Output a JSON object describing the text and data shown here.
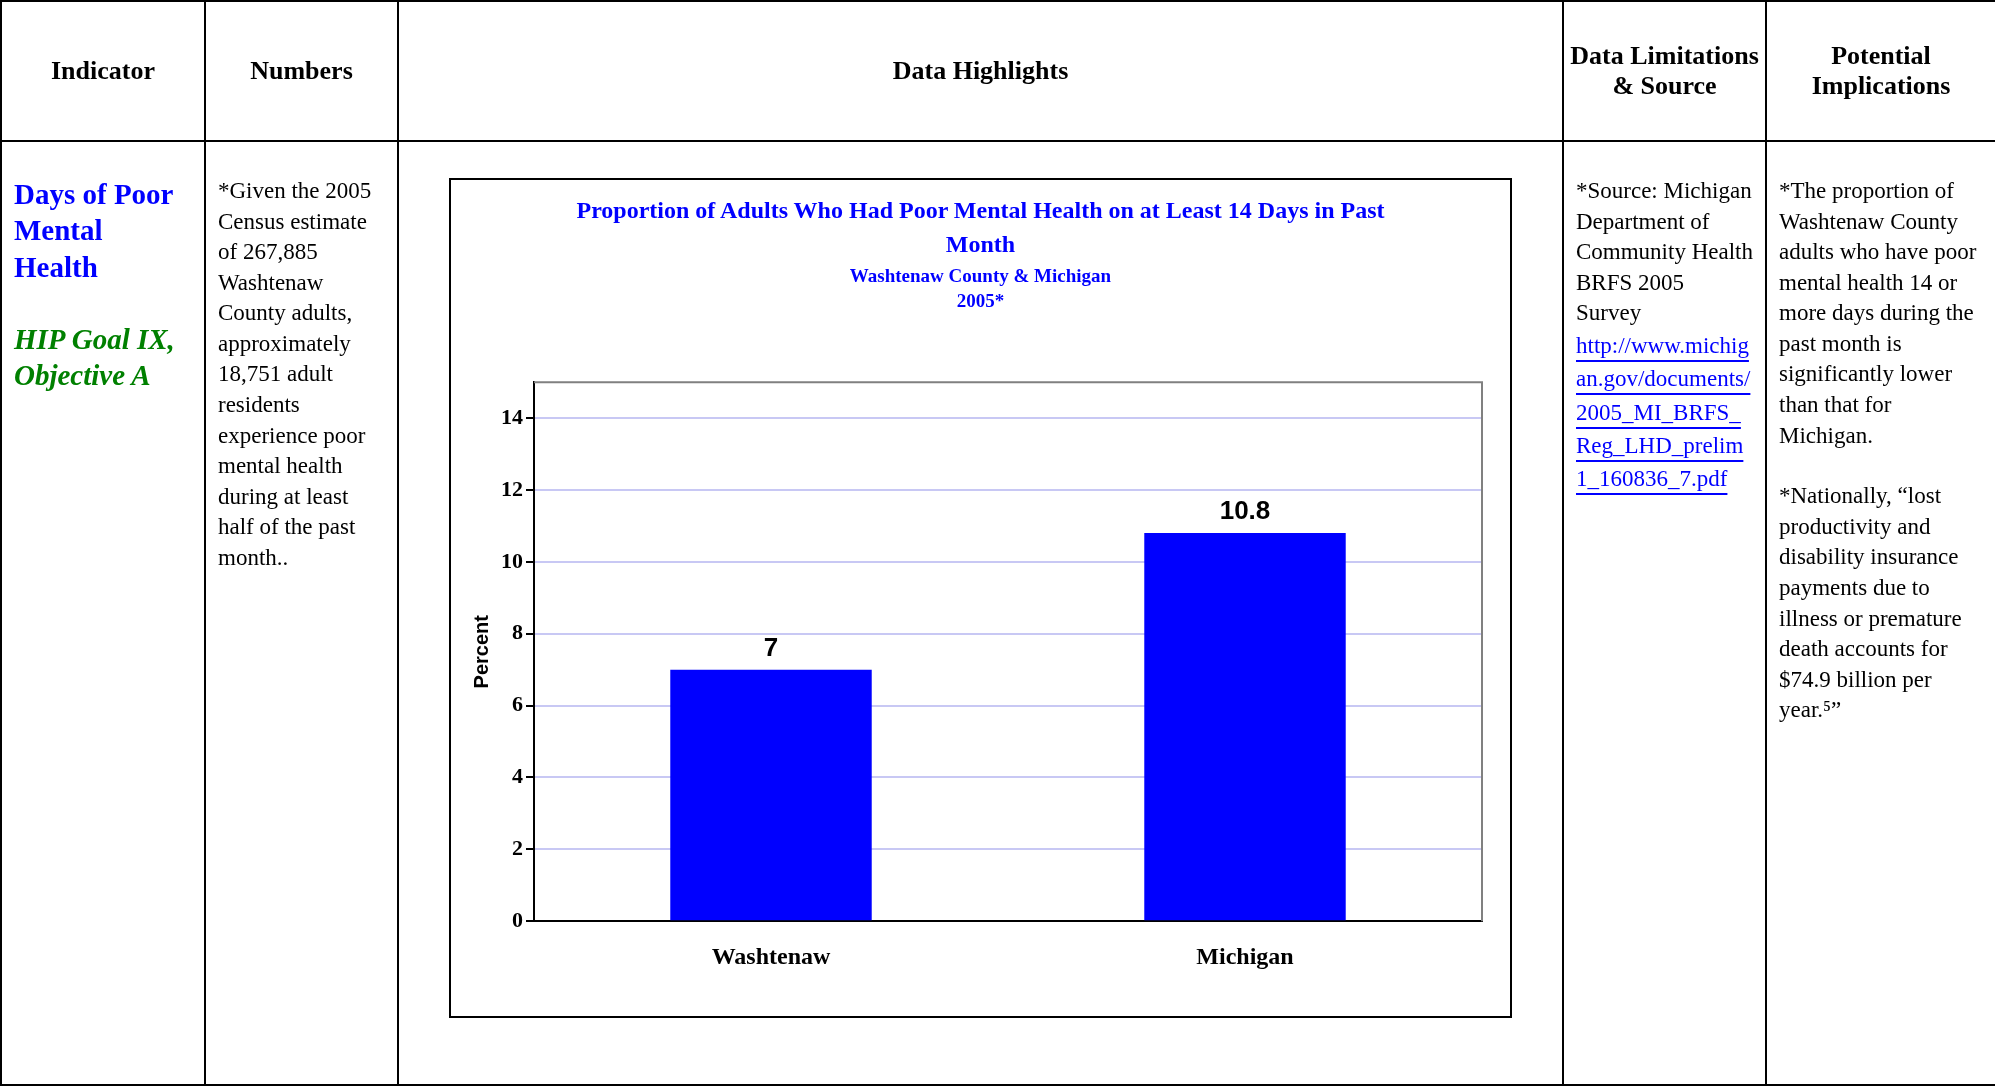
{
  "chart_data": [
    {
      "type": "other",
      "annotations": [
        "Indicator",
        "Numbers",
        "Data Highlights",
        "Data Limitations & Source",
        "Potential Implications",
        "Days of Poor Mental Health",
        "HIP Goal IX, Objective A",
        "*Given the 2005 Census estimate of 267,885 Washtenaw County adults, approximately 18,751 adult residents experience poor mental health during at least half of the past month..",
        "*Source: Michigan Department of Community Health BRFS 2005 Survey",
        "http://www.michigan.gov/documents/2005_MI_BRFS_Reg_LHD_prelim1_160836_7.pdf",
        "*The proportion of Washtenaw County adults who have poor mental health 14 or more days during the past month is significantly lower than that for Michigan.",
        "*Nationally, “lost productivity and disability insurance payments due to illness or premature death accounts for $74.9 billion per year.⁵”"
      ]
    },
    {
      "type": "bar",
      "title": "Proportion of Adults Who Had Poor Mental Health on at Least 14 Days in Past Month",
      "subtitle": "Washtenaw County & Michigan",
      "annotations": [
        "2005*"
      ],
      "ylabel": "Percent",
      "categories": [
        "Washtenaw",
        "Michigan"
      ],
      "values": [
        7,
        10.8
      ],
      "color": "#0000ff",
      "ylim": [
        0,
        15
      ],
      "yticks": [
        0,
        2,
        4,
        6,
        8,
        10,
        12,
        14
      ],
      "grid": "y",
      "data_labels": true
    }
  ]
}
